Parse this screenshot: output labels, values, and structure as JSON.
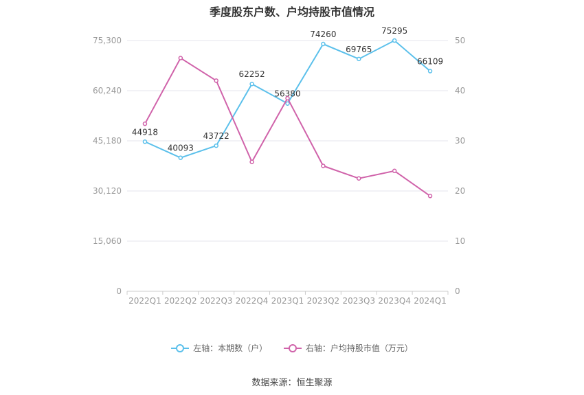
{
  "chart_data": {
    "type": "line",
    "title": "季度股东户数、户均持股市值情况",
    "categories": [
      "2022Q1",
      "2022Q2",
      "2022Q3",
      "2022Q4",
      "2023Q1",
      "2023Q2",
      "2023Q3",
      "2023Q4",
      "2024Q1"
    ],
    "left_axis": {
      "ylim": [
        0,
        75300
      ],
      "ticks": [
        "0",
        "15,060",
        "30,120",
        "45,180",
        "60,240",
        "75,300"
      ]
    },
    "right_axis": {
      "ylim": [
        0,
        50
      ],
      "ticks": [
        "0",
        "10",
        "20",
        "30",
        "40",
        "50"
      ]
    },
    "series": [
      {
        "name": "左轴：本期数（户）",
        "axis": "left",
        "color": "#5bc0eb",
        "values": [
          44918,
          40093,
          43722,
          62252,
          56380,
          74260,
          69765,
          75295,
          66109
        ],
        "labels": [
          "44918",
          "40093",
          "43722",
          "62252",
          "56380",
          "74260",
          "69765",
          "75295",
          "66109"
        ]
      },
      {
        "name": "右轴：户均持股市值（万元）",
        "axis": "right",
        "color": "#d063aa",
        "values": [
          33.4,
          46.5,
          42.0,
          25.8,
          38.5,
          25.0,
          22.5,
          24.0,
          19.0
        ]
      }
    ],
    "legend_position": "bottom",
    "grid": true
  },
  "source": "数据来源：恒生聚源"
}
